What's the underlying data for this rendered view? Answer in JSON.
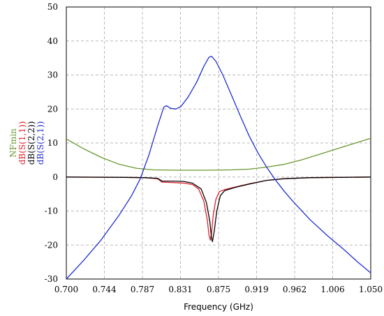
{
  "chart_data": {
    "type": "line",
    "xlabel": "Frequency (GHz)",
    "ylabel": "",
    "xlim": [
      0.7,
      1.05
    ],
    "ylim": [
      -30,
      50
    ],
    "grid": true,
    "x_ticks": [
      "0.700",
      "0.744",
      "0.787",
      "0.831",
      "0.875",
      "0.919",
      "0.962",
      "1.006",
      "1.050"
    ],
    "y_ticks": [
      "-30",
      "-20",
      "-10",
      "0",
      "10",
      "20",
      "30",
      "40",
      "50"
    ],
    "legend_placement": "left-vertical",
    "series": [
      {
        "name": "NFmin",
        "color": "#6b9630",
        "points": [
          [
            0.7,
            11.2
          ],
          [
            0.72,
            8.3
          ],
          [
            0.74,
            5.8
          ],
          [
            0.76,
            3.8
          ],
          [
            0.78,
            2.6
          ],
          [
            0.8,
            2.1
          ],
          [
            0.83,
            2.0
          ],
          [
            0.86,
            2.0
          ],
          [
            0.89,
            2.1
          ],
          [
            0.91,
            2.3
          ],
          [
            0.93,
            2.9
          ],
          [
            0.95,
            3.7
          ],
          [
            0.97,
            5.0
          ],
          [
            0.99,
            6.6
          ],
          [
            1.01,
            8.2
          ],
          [
            1.03,
            9.8
          ],
          [
            1.05,
            11.4
          ]
        ]
      },
      {
        "name": "dB(S(1,1))",
        "color": "#e0202a",
        "points": [
          [
            0.7,
            0.0
          ],
          [
            0.76,
            -0.1
          ],
          [
            0.79,
            -0.2
          ],
          [
            0.805,
            -0.5
          ],
          [
            0.81,
            -1.5
          ],
          [
            0.82,
            -1.6
          ],
          [
            0.835,
            -1.8
          ],
          [
            0.845,
            -2.2
          ],
          [
            0.852,
            -3.5
          ],
          [
            0.858,
            -7.0
          ],
          [
            0.862,
            -12.5
          ],
          [
            0.864,
            -17.0
          ],
          [
            0.8655,
            -18.6
          ],
          [
            0.867,
            -16.5
          ],
          [
            0.869,
            -11.0
          ],
          [
            0.872,
            -6.5
          ],
          [
            0.876,
            -4.3
          ],
          [
            0.882,
            -3.7
          ],
          [
            0.895,
            -2.9
          ],
          [
            0.91,
            -2.0
          ],
          [
            0.93,
            -1.0
          ],
          [
            0.95,
            -0.5
          ],
          [
            0.98,
            -0.2
          ],
          [
            1.02,
            -0.1
          ],
          [
            1.05,
            0.0
          ]
        ]
      },
      {
        "name": "dB(S(2,2))",
        "color": "#000000",
        "points": [
          [
            0.7,
            0.0
          ],
          [
            0.76,
            -0.1
          ],
          [
            0.79,
            -0.2
          ],
          [
            0.805,
            -0.4
          ],
          [
            0.81,
            -1.2
          ],
          [
            0.82,
            -1.2
          ],
          [
            0.835,
            -1.3
          ],
          [
            0.845,
            -1.8
          ],
          [
            0.855,
            -3.5
          ],
          [
            0.861,
            -7.5
          ],
          [
            0.865,
            -13.0
          ],
          [
            0.867,
            -18.0
          ],
          [
            0.868,
            -19.0
          ],
          [
            0.87,
            -16.0
          ],
          [
            0.873,
            -10.0
          ],
          [
            0.877,
            -5.5
          ],
          [
            0.882,
            -4.0
          ],
          [
            0.895,
            -3.0
          ],
          [
            0.91,
            -2.1
          ],
          [
            0.93,
            -1.0
          ],
          [
            0.95,
            -0.5
          ],
          [
            0.98,
            -0.2
          ],
          [
            1.02,
            -0.1
          ],
          [
            1.05,
            0.0
          ]
        ]
      },
      {
        "name": "dB(S(2,1))",
        "color": "#1f2fd0",
        "points": [
          [
            0.7,
            -30.0
          ],
          [
            0.72,
            -24.5
          ],
          [
            0.74,
            -18.5
          ],
          [
            0.76,
            -11.5
          ],
          [
            0.775,
            -5.5
          ],
          [
            0.785,
            -0.5
          ],
          [
            0.795,
            6.5
          ],
          [
            0.805,
            15.0
          ],
          [
            0.812,
            20.5
          ],
          [
            0.815,
            21.0
          ],
          [
            0.82,
            20.2
          ],
          [
            0.826,
            20.0
          ],
          [
            0.832,
            20.8
          ],
          [
            0.84,
            23.5
          ],
          [
            0.85,
            28.0
          ],
          [
            0.858,
            32.5
          ],
          [
            0.864,
            35.2
          ],
          [
            0.867,
            35.5
          ],
          [
            0.872,
            34.0
          ],
          [
            0.88,
            30.0
          ],
          [
            0.89,
            24.0
          ],
          [
            0.9,
            18.0
          ],
          [
            0.91,
            12.2
          ],
          [
            0.92,
            7.2
          ],
          [
            0.93,
            3.0
          ],
          [
            0.94,
            -0.7
          ],
          [
            0.95,
            -4.0
          ],
          [
            0.96,
            -7.0
          ],
          [
            0.98,
            -12.5
          ],
          [
            1.0,
            -17.2
          ],
          [
            1.02,
            -21.5
          ],
          [
            1.035,
            -25.0
          ],
          [
            1.05,
            -28.2
          ]
        ]
      }
    ]
  }
}
